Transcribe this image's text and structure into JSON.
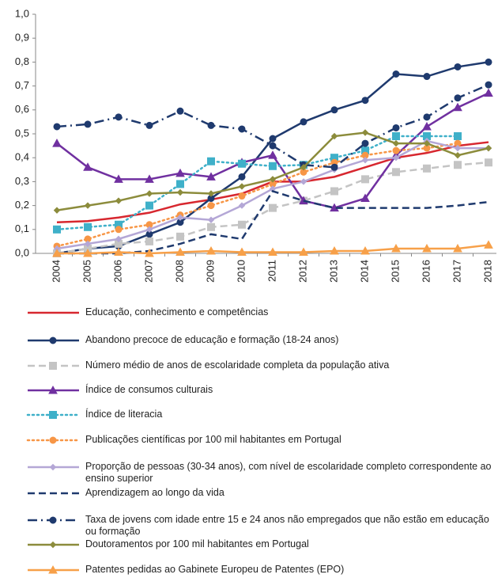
{
  "chart_data": {
    "type": "line",
    "categories": [
      "2004",
      "2005",
      "2006",
      "2007",
      "2008",
      "2009",
      "2010",
      "2011",
      "2012",
      "2013",
      "2014",
      "2015",
      "2016",
      "2017",
      "2018"
    ],
    "ylim": [
      0,
      1
    ],
    "yticks": [
      {
        "value": 0,
        "label": "0,0"
      },
      {
        "value": 0.1,
        "label": "0,1"
      },
      {
        "value": 0.2,
        "label": "0,2"
      },
      {
        "value": 0.3,
        "label": "0,3"
      },
      {
        "value": 0.4,
        "label": "0,4"
      },
      {
        "value": 0.5,
        "label": "0,5"
      },
      {
        "value": 0.6,
        "label": "0,6"
      },
      {
        "value": 0.7,
        "label": "0,7"
      },
      {
        "value": 0.8,
        "label": "0,8"
      },
      {
        "value": 0.9,
        "label": "0,9"
      },
      {
        "value": 1,
        "label": "1,0"
      }
    ],
    "grid": false,
    "series": [
      {
        "name": "Educação, conhecimento e competências",
        "color": "#d7272f",
        "dash": "solid",
        "marker": "none",
        "values": [
          0.13,
          0.135,
          0.15,
          0.17,
          0.205,
          0.225,
          0.25,
          0.3,
          0.3,
          0.32,
          0.36,
          0.4,
          0.42,
          0.45,
          0.465
        ]
      },
      {
        "name": "Abandono precoce de educação e formação (18-24 anos)",
        "color": "#1f3a6e",
        "dash": "solid",
        "marker": "circle",
        "values": [
          0.0,
          0.02,
          0.03,
          0.08,
          0.13,
          0.23,
          0.32,
          0.48,
          0.55,
          0.6,
          0.64,
          0.75,
          0.74,
          0.78,
          0.8
        ]
      },
      {
        "name": "Número médio de anos de escolaridade completa da população ativa",
        "color": "#c4c4c4",
        "dash": "dashed",
        "marker": "square",
        "values": [
          0.0,
          0.02,
          0.04,
          0.05,
          0.07,
          0.11,
          0.12,
          0.19,
          0.22,
          0.26,
          0.31,
          0.34,
          0.355,
          0.37,
          0.38
        ]
      },
      {
        "name": "Índice de consumos culturais",
        "color": "#7030a0",
        "dash": "solid",
        "marker": "triangle",
        "values": [
          0.46,
          0.36,
          0.31,
          0.31,
          0.335,
          0.32,
          0.38,
          0.41,
          0.22,
          0.19,
          0.23,
          0.41,
          0.53,
          0.61,
          0.67
        ]
      },
      {
        "name": "Índice de literacia",
        "color": "#3fb0c9",
        "dash": "dotted",
        "marker": "square",
        "values": [
          0.1,
          0.11,
          0.12,
          0.2,
          0.29,
          0.385,
          0.375,
          0.365,
          0.37,
          0.4,
          0.43,
          0.49,
          0.49,
          0.49,
          null
        ]
      },
      {
        "name": "Publicações científicas por 100 mil habitantes em Portugal",
        "color": "#f79646",
        "dash": "dotted",
        "marker": "circle",
        "values": [
          0.03,
          0.06,
          0.1,
          0.12,
          0.16,
          0.2,
          0.24,
          0.29,
          0.34,
          0.38,
          0.41,
          0.43,
          0.44,
          0.46,
          null
        ]
      },
      {
        "name": "Proporção de pessoas (30-34 anos), com nível de escolaridade completo correspondente ao ensino superior",
        "color": "#b4a7d6",
        "dash": "solid",
        "marker": "diamond",
        "values": [
          0.02,
          0.04,
          0.06,
          0.1,
          0.15,
          0.14,
          0.2,
          0.27,
          0.3,
          0.35,
          0.39,
          0.4,
          0.47,
          0.44,
          0.44
        ]
      },
      {
        "name": "Aprendizagem ao longo da vida",
        "color": "#1f3a6e",
        "dash": "dashed",
        "marker": "none",
        "values": [
          0.0,
          0.0,
          0.0,
          0.01,
          0.04,
          0.08,
          0.06,
          0.26,
          0.22,
          0.19,
          0.19,
          0.19,
          0.19,
          0.2,
          0.215
        ]
      },
      {
        "name": "Taxa de jovens com idade entre 15 e 24 anos não empregados que não estão em educação ou formação",
        "color": "#1f3a6e",
        "dash": "dashdot",
        "marker": "circle",
        "values": [
          0.53,
          0.54,
          0.57,
          0.535,
          0.595,
          0.535,
          0.52,
          0.45,
          0.37,
          0.36,
          0.46,
          0.525,
          0.57,
          0.65,
          0.705
        ]
      },
      {
        "name": "Doutoramentos por 100 mil habitantes em Portugal",
        "color": "#8c8c3c",
        "dash": "solid",
        "marker": "diamond",
        "values": [
          0.18,
          0.2,
          0.22,
          0.25,
          0.255,
          0.25,
          0.28,
          0.31,
          0.36,
          0.49,
          0.505,
          0.46,
          0.46,
          0.41,
          0.44
        ]
      },
      {
        "name": "Patentes pedidas ao Gabinete Europeu de Patentes (EPO)",
        "color": "#f7a049",
        "dash": "solid",
        "marker": "triangle",
        "values": [
          0.0,
          0.0,
          0.005,
          0.0,
          0.005,
          0.01,
          0.005,
          0.005,
          0.005,
          0.01,
          0.01,
          0.02,
          0.02,
          0.02,
          0.035
        ]
      }
    ]
  }
}
